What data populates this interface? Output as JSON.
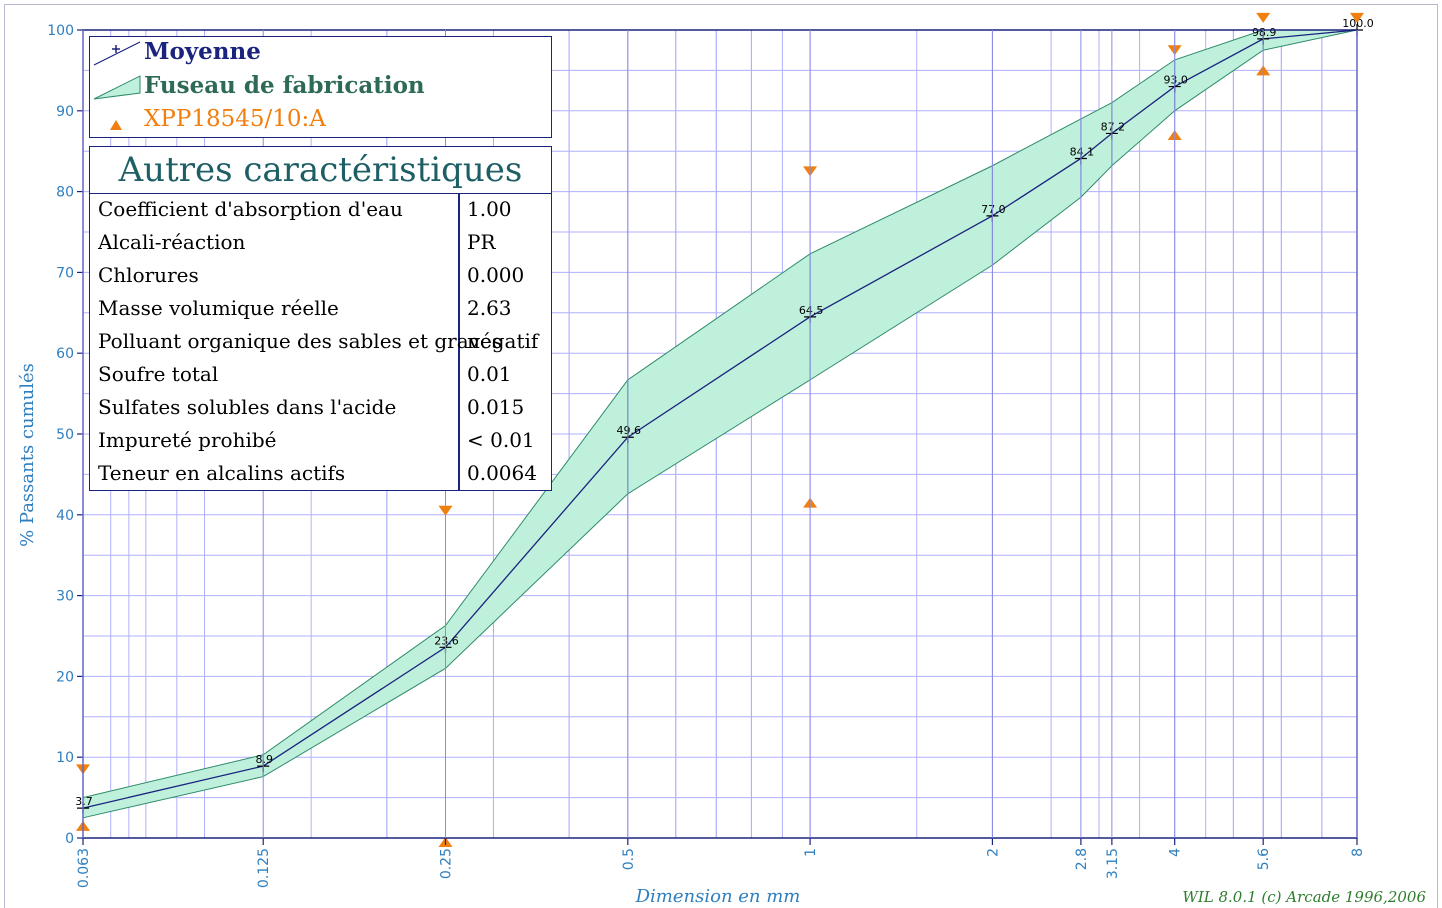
{
  "chart_data": {
    "type": "line",
    "ylabel": "% Passants cumulés",
    "xlabel": "Dimension en mm",
    "credit": "WIL 8.0.1 (c) Arcade 1996,2006",
    "ylim": [
      0,
      100
    ],
    "yticks": [
      0,
      10,
      20,
      30,
      40,
      50,
      60,
      70,
      80,
      90,
      100
    ],
    "x_scale": "log",
    "xlim": [
      0.063,
      8
    ],
    "x_tick_labels": [
      "0.063",
      "0.125",
      "0.25",
      "0.5",
      "1",
      "2",
      "2.8",
      "3.15",
      "4",
      "5.6",
      "8"
    ],
    "x_tick_values": [
      0.063,
      0.125,
      0.25,
      0.5,
      1,
      2,
      2.8,
      3.15,
      4,
      5.6,
      8
    ],
    "grid": true,
    "legend_placement": "top-left",
    "series": [
      {
        "name": "Moyenne",
        "color": "#1a237e",
        "x": [
          0.063,
          0.125,
          0.25,
          0.5,
          1,
          2,
          2.8,
          3.15,
          4,
          5.6,
          8
        ],
        "values": [
          3.7,
          8.9,
          23.6,
          49.6,
          64.5,
          77.0,
          84.1,
          87.2,
          93.0,
          98.9,
          100.0
        ],
        "labels": [
          "3.7",
          "8.9",
          "23.6",
          "49.6",
          "64.5",
          "77.0",
          "84.1",
          "87.2",
          "93.0",
          "98.9",
          "100.0"
        ]
      },
      {
        "name": "Fuseau de fabrication",
        "color": "#bff0dc",
        "edge_color": "#2e8b6a",
        "x": [
          0.063,
          0.125,
          0.25,
          0.5,
          1,
          2,
          2.8,
          3.15,
          4,
          5.6,
          8
        ],
        "upper": [
          5.0,
          10.3,
          26.3,
          56.7,
          72.3,
          83.2,
          89.0,
          91.0,
          96.3,
          100,
          100
        ],
        "lower": [
          2.5,
          7.6,
          21.0,
          42.6,
          56.7,
          70.9,
          79.3,
          83.2,
          90.0,
          97.5,
          100
        ]
      },
      {
        "name": "XPP18545/10:A",
        "color": "#f07f10",
        "upper_limits": [
          {
            "x": 0.063,
            "y": 8.5
          },
          {
            "x": 0.25,
            "y": 40.5
          },
          {
            "x": 1,
            "y": 82.5
          },
          {
            "x": 4,
            "y": 97.5
          },
          {
            "x": 5.6,
            "y": 101.5
          },
          {
            "x": 8,
            "y": 101.5
          }
        ],
        "lower_limits": [
          {
            "x": 0.063,
            "y": 1.5
          },
          {
            "x": 0.25,
            "y": -0.5
          },
          {
            "x": 1,
            "y": 41.5
          },
          {
            "x": 4,
            "y": 87.0
          },
          {
            "x": 5.6,
            "y": 95.0
          }
        ]
      }
    ]
  },
  "table": {
    "title": "Autres caractéristiques",
    "rows": [
      {
        "label": "Coefficient d'absorption d'eau",
        "value": "1.00"
      },
      {
        "label": "Alcali-réaction",
        "value": "PR"
      },
      {
        "label": "Chlorures",
        "value": "0.000"
      },
      {
        "label": "Masse volumique réelle",
        "value": "2.63"
      },
      {
        "label": "Polluant organique des sables et graves",
        "value": "négatif"
      },
      {
        "label": "Soufre total",
        "value": "0.01"
      },
      {
        "label": "Sulfates solubles dans l'acide",
        "value": "0.015"
      },
      {
        "label": "Impureté prohibé",
        "value": "< 0.01"
      },
      {
        "label": "Teneur en alcalins actifs",
        "value": "0.0064"
      }
    ]
  }
}
